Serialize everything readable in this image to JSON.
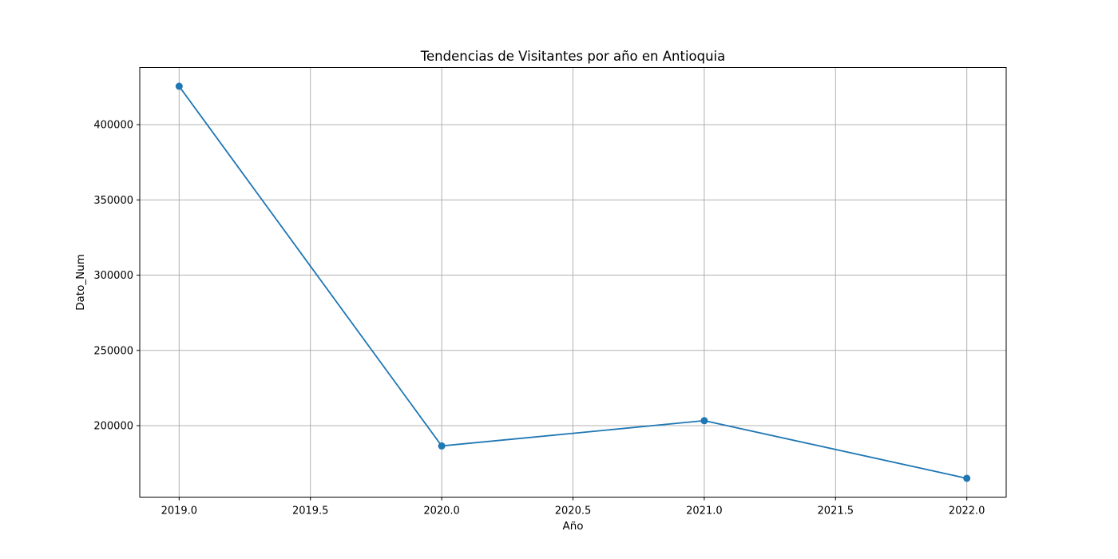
{
  "chart_data": {
    "type": "line",
    "title": "Tendencias de Visitantes por año en Antioquia",
    "xlabel": "Año",
    "ylabel": "Dato_Num",
    "x": [
      2019,
      2020,
      2021,
      2022
    ],
    "series": [
      {
        "values": [
          425500,
          186500,
          203300,
          165000
        ]
      }
    ],
    "xlim": [
      2018.85,
      2022.15
    ],
    "ylim": [
      152500,
      438000
    ],
    "xticks": [
      2019.0,
      2019.5,
      2020.0,
      2020.5,
      2021.0,
      2021.5,
      2022.0
    ],
    "xtick_labels": [
      "2019.0",
      "2019.5",
      "2020.0",
      "2020.5",
      "2021.0",
      "2021.5",
      "2022.0"
    ],
    "yticks": [
      200000,
      250000,
      300000,
      350000,
      400000
    ],
    "ytick_labels": [
      "200000",
      "250000",
      "300000",
      "350000",
      "400000"
    ],
    "grid": true,
    "marker": "circle",
    "line_color": "#1f77b4"
  }
}
